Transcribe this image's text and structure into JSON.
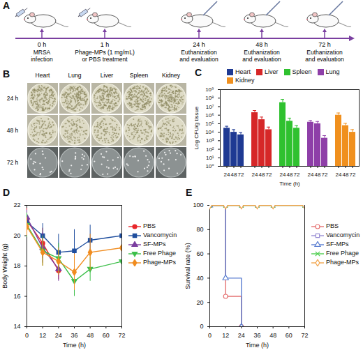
{
  "diagram": {
    "label": "A",
    "timepoints": [
      {
        "label": "0 h",
        "text": [
          "MRSA",
          "infection"
        ]
      },
      {
        "label": "1 h",
        "text": [
          "Phage-MPs (1 mg/mL)",
          "or PBS treatment"
        ]
      },
      {
        "label": "24 h",
        "text": [
          "Euthanization",
          "and evaluation"
        ]
      },
      {
        "label": "48 h",
        "text": [
          "Euthanization",
          "and evaluation"
        ]
      },
      {
        "label": "72 h",
        "text": [
          "Euthanization",
          "and evaluation"
        ]
      }
    ]
  },
  "images": {
    "label": "B",
    "columns": [
      "Heart",
      "Lung",
      "Liver",
      "Spleen",
      "Kidney"
    ],
    "rows": [
      "24 h",
      "48 h",
      "72 h"
    ]
  },
  "chart_data": [
    {
      "panel": "C",
      "type": "bar",
      "categories": [
        "24",
        "48",
        "72"
      ],
      "xlabel": "Time (h)",
      "ylabel": "Log CFU/g tissue",
      "log": "y",
      "ylim": [
        1,
        1000000000
      ],
      "yticks": [
        {
          "value": 1,
          "label": "10⁰"
        },
        {
          "value": 10,
          "label": "10¹"
        },
        {
          "value": 100,
          "label": "10²"
        },
        {
          "value": 1000,
          "label": "10³"
        },
        {
          "value": 10000,
          "label": "10⁴"
        },
        {
          "value": 100000,
          "label": "10⁵"
        },
        {
          "value": 1000000,
          "label": "10⁶"
        },
        {
          "value": 10000000,
          "label": "10⁷"
        },
        {
          "value": 100000000,
          "label": "10⁸"
        },
        {
          "value": 1000000000,
          "label": "10⁹"
        }
      ],
      "legend": "top",
      "series": [
        {
          "name": "Heart",
          "color": "#1f3a93",
          "values": [
            30000,
            10000,
            5000
          ],
          "errors": [
            20000,
            10000,
            4000
          ]
        },
        {
          "name": "Liver",
          "color": "#d62728",
          "values": [
            2000000,
            300000,
            20000
          ],
          "errors": [
            1500000,
            300000,
            20000
          ]
        },
        {
          "name": "Spleen",
          "color": "#2fc12f",
          "values": [
            30000000,
            200000,
            30000
          ],
          "errors": [
            40000000,
            250000,
            30000
          ]
        },
        {
          "name": "Lung",
          "color": "#8e3fa8",
          "values": [
            150000,
            100000,
            2000
          ],
          "errors": [
            80000,
            80000,
            2000
          ]
        },
        {
          "name": "Kidney",
          "color": "#f0901e",
          "values": [
            1000000,
            60000,
            10000
          ],
          "errors": [
            800000,
            50000,
            10000
          ]
        }
      ]
    },
    {
      "panel": "D",
      "type": "line",
      "x": [
        0,
        12,
        24,
        36,
        48,
        72
      ],
      "xlabel": "Time (h)",
      "ylabel": "Body Weight (g)",
      "xlim": [
        0,
        72
      ],
      "xticks": [
        0,
        12,
        24,
        36,
        48,
        60,
        72
      ],
      "ylim": [
        14,
        22
      ],
      "yticks": [
        14,
        16,
        18,
        20,
        22
      ],
      "legend": "right",
      "line_style": "solid",
      "series": [
        {
          "name": "PBS",
          "color": "#e8262a",
          "marker": "circle",
          "values": [
            21.0,
            19.5,
            17.7,
            null,
            null,
            null
          ],
          "errors": [
            0.8,
            1.0,
            0.6,
            null,
            null,
            null
          ]
        },
        {
          "name": "Vancomycin",
          "color": "#1f4e9e",
          "marker": "square",
          "values": [
            20.9,
            20.0,
            18.9,
            19.0,
            19.7,
            20.0
          ],
          "errors": [
            0.6,
            0.8,
            1.2,
            1.4,
            1.0,
            1.0
          ]
        },
        {
          "name": "SF-MPs",
          "color": "#7b3fa0",
          "marker": "triangle",
          "values": [
            21.2,
            19.2,
            17.8,
            null,
            null,
            null
          ],
          "errors": [
            0.5,
            1.0,
            0.8,
            null,
            null,
            null
          ]
        },
        {
          "name": "Free Phage",
          "color": "#3dbf4a",
          "marker": "triangle-down",
          "values": [
            20.7,
            19.0,
            18.5,
            17.0,
            17.8,
            18.3
          ],
          "errors": [
            0.8,
            1.0,
            1.0,
            1.0,
            0.8,
            0.8
          ]
        },
        {
          "name": "Phage-MPs",
          "color": "#f08c1f",
          "marker": "diamond",
          "values": [
            20.6,
            18.9,
            18.3,
            17.6,
            18.9,
            19.2
          ],
          "errors": [
            0.6,
            0.9,
            0.9,
            1.2,
            1.2,
            0.9
          ]
        }
      ]
    },
    {
      "panel": "E",
      "type": "line",
      "x": [
        0,
        12,
        24,
        36,
        48,
        72
      ],
      "xlabel": "Time (h)",
      "ylabel": "Survival rate (%)",
      "xlim": [
        0,
        72
      ],
      "xticks": [
        0,
        12,
        24,
        36,
        48,
        60,
        72
      ],
      "ylim": [
        0,
        100
      ],
      "yticks": [
        0,
        20,
        40,
        60,
        80,
        100
      ],
      "legend": "right",
      "line_style": "step",
      "series": [
        {
          "name": "PBS",
          "color": "#e57373",
          "marker": "circle-open",
          "values": [
            100,
            25,
            0,
            null,
            null,
            null
          ]
        },
        {
          "name": "Vancomycin",
          "color": "#9a8fd4",
          "marker": "square-open",
          "values": [
            100,
            100,
            100,
            100,
            100,
            100
          ]
        },
        {
          "name": "SF-MPs",
          "color": "#5b7fd1",
          "marker": "triangle-open",
          "values": [
            100,
            40,
            0,
            null,
            null,
            null
          ]
        },
        {
          "name": "Free Phage",
          "color": "#4fcf4f",
          "marker": "times",
          "values": [
            100,
            100,
            100,
            100,
            100,
            100
          ]
        },
        {
          "name": "Phage-MPs",
          "color": "#f2a64e",
          "marker": "diamond-open",
          "values": [
            100,
            100,
            100,
            100,
            100,
            100
          ]
        }
      ]
    }
  ]
}
